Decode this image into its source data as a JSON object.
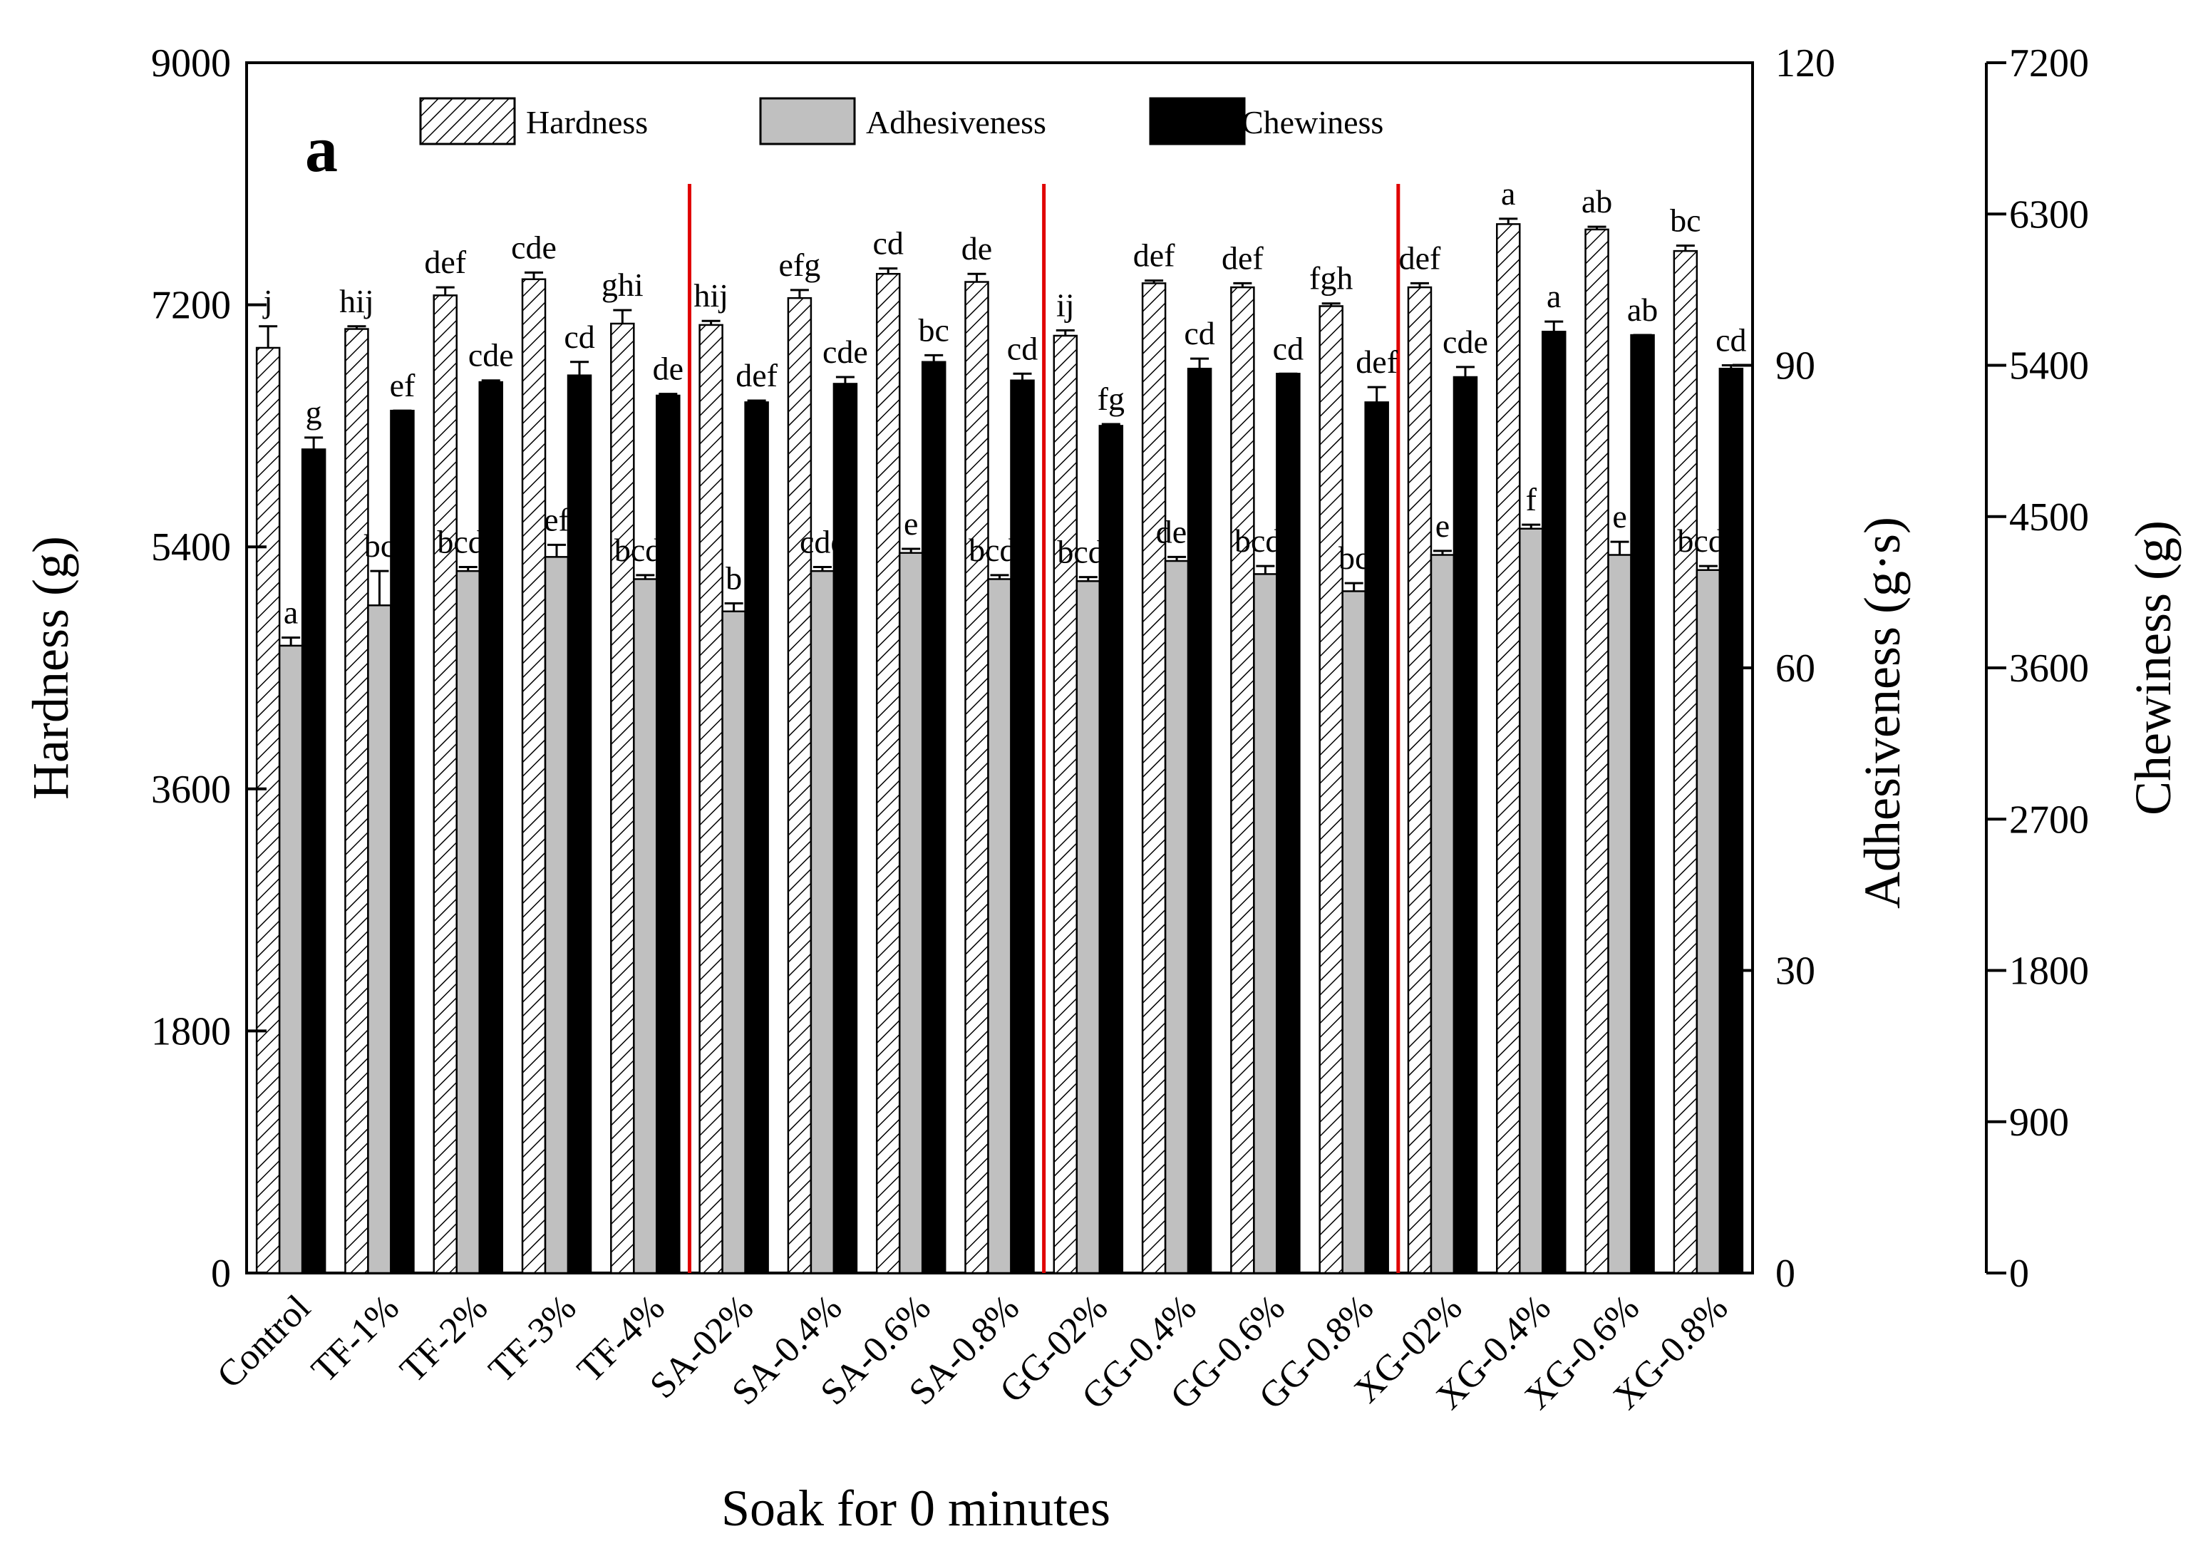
{
  "chart_data": {
    "type": "bar",
    "panel_label": "a",
    "xlabel": "Soak for 0 minutes",
    "categories": [
      "Control",
      "TF-1%",
      "TF-2%",
      "TF-3%",
      "TF-4%",
      "SA-02%",
      "SA-0.4%",
      "SA-0.6%",
      "SA-0.8%",
      "GG-02%",
      "GG-0.4%",
      "GG-0.6%",
      "GG-0.8%",
      "XG-02%",
      "XG-0.4%",
      "XG-0.6%",
      "XG-0.8%"
    ],
    "group_separators_after": [
      4,
      8,
      12
    ],
    "separator_color": "#e00000",
    "axes": [
      {
        "id": "hardness",
        "label": "Hardness (g)",
        "side": "left",
        "ylim": [
          0,
          9000
        ],
        "ticks": [
          "0",
          "1800",
          "3600",
          "5400",
          "7200",
          "9000"
        ]
      },
      {
        "id": "adhesiveness",
        "label": "Adhesiveness (g·s)",
        "side": "right",
        "ylim": [
          0,
          120
        ],
        "ticks": [
          "0",
          "30",
          "60",
          "90",
          "120"
        ]
      },
      {
        "id": "chewiness",
        "label": "Chewiness (g)",
        "side": "right-outer",
        "ylim": [
          0,
          7200
        ],
        "ticks": [
          "0",
          "900",
          "1800",
          "2700",
          "3600",
          "4500",
          "5400",
          "6300",
          "7200"
        ]
      }
    ],
    "series": [
      {
        "name": "Hardness",
        "axis": "hardness",
        "pattern": "hatched",
        "color": "#ffffff",
        "values": [
          6880,
          7020,
          7270,
          7390,
          7060,
          7050,
          7250,
          7430,
          7370,
          6970,
          7360,
          7330,
          7190,
          7330,
          7800,
          7760,
          7600
        ],
        "errors": [
          160,
          20,
          60,
          50,
          100,
          30,
          60,
          40,
          60,
          40,
          20,
          30,
          20,
          30,
          40,
          20,
          40
        ],
        "labels": [
          "j",
          "hij",
          "def",
          "cde",
          "ghi",
          "hij",
          "efg",
          "cd",
          "de",
          "ij",
          "def",
          "def",
          "fgh",
          "def",
          "a",
          "ab",
          "bc"
        ]
      },
      {
        "name": "Adhesiveness",
        "axis": "adhesiveness",
        "pattern": "solid",
        "color": "#c0c0c0",
        "values": [
          62.2,
          66.2,
          69.6,
          71.0,
          68.8,
          65.6,
          69.6,
          71.4,
          68.8,
          68.6,
          70.6,
          69.3,
          67.6,
          71.2,
          73.8,
          71.2,
          69.7
        ],
        "errors": [
          0.8,
          3.4,
          0.4,
          1.2,
          0.4,
          0.8,
          0.4,
          0.4,
          0.4,
          0.4,
          0.4,
          0.8,
          0.8,
          0.4,
          0.4,
          1.3,
          0.4
        ],
        "labels": [
          "a",
          "bc",
          "bcde",
          "ef",
          "bcde",
          "b",
          "cde",
          "e",
          "bcde",
          "bcde",
          "def",
          "bcde",
          "bc",
          "e",
          "f",
          "e",
          "bcde"
        ]
      },
      {
        "name": "Chewiness",
        "axis": "chewiness",
        "pattern": "solid",
        "color": "#000000",
        "values": [
          4900,
          5130,
          5300,
          5340,
          5220,
          5180,
          5290,
          5420,
          5310,
          5040,
          5380,
          5350,
          5180,
          5330,
          5600,
          5580,
          5380
        ],
        "errors": [
          70,
          0,
          10,
          80,
          10,
          10,
          40,
          40,
          40,
          10,
          60,
          0,
          90,
          60,
          60,
          0,
          20
        ],
        "labels": [
          "g",
          "ef",
          "cde",
          "cd",
          "de",
          "def",
          "cde",
          "bc",
          "cd",
          "fg",
          "cd",
          "cd",
          "def",
          "cde",
          "a",
          "ab",
          "cd"
        ]
      }
    ],
    "legend": [
      "Hardness",
      "Adhesiveness",
      "Chewiness"
    ],
    "legend_position": "top-center"
  }
}
